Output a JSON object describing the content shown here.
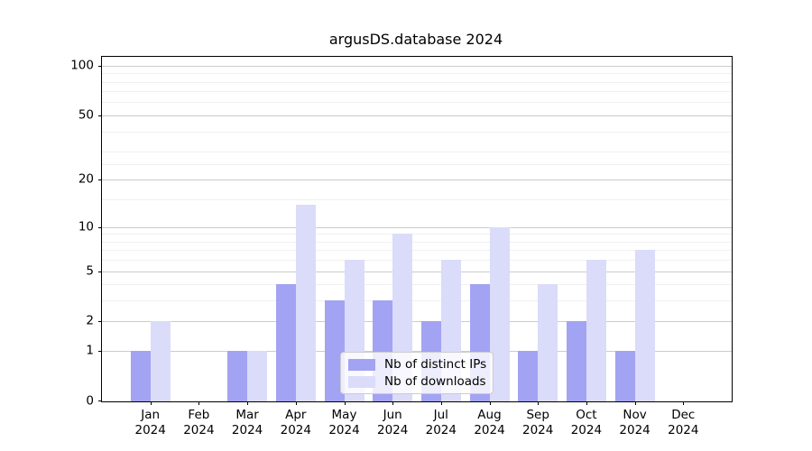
{
  "chart_data": {
    "type": "bar",
    "title": "argusDS.database 2024",
    "categories": [
      {
        "month": "Jan",
        "year": "2024"
      },
      {
        "month": "Feb",
        "year": "2024"
      },
      {
        "month": "Mar",
        "year": "2024"
      },
      {
        "month": "Apr",
        "year": "2024"
      },
      {
        "month": "May",
        "year": "2024"
      },
      {
        "month": "Jun",
        "year": "2024"
      },
      {
        "month": "Jul",
        "year": "2024"
      },
      {
        "month": "Aug",
        "year": "2024"
      },
      {
        "month": "Sep",
        "year": "2024"
      },
      {
        "month": "Oct",
        "year": "2024"
      },
      {
        "month": "Nov",
        "year": "2024"
      },
      {
        "month": "Dec",
        "year": "2024"
      }
    ],
    "series": [
      {
        "key": "distinct-ips",
        "name": "Nb of distinct IPs",
        "color": "#a3a3f3",
        "values": [
          1,
          0,
          1,
          4,
          3,
          3,
          2,
          4,
          1,
          2,
          1,
          0
        ]
      },
      {
        "key": "downloads",
        "name": "Nb of downloads",
        "color": "#dbdbfa",
        "values": [
          2,
          0,
          1,
          14,
          6,
          9,
          6,
          10,
          4,
          6,
          7,
          0
        ]
      }
    ],
    "xlabel": "",
    "ylabel": "",
    "yscale": "log1p",
    "ylim": [
      0,
      113
    ],
    "yticks": [
      0,
      1,
      2,
      5,
      10,
      20,
      50,
      100
    ],
    "minor_gridlines": [
      3,
      4,
      6,
      7,
      8,
      9,
      15,
      25,
      30,
      40,
      60,
      70,
      80,
      90
    ],
    "grid": true,
    "legend_position": "lower center",
    "colors": {
      "axis": "#000000",
      "major_grid": "#cccccc",
      "minor_grid": "#f0f0f0",
      "legend_border": "#cccccc"
    }
  }
}
